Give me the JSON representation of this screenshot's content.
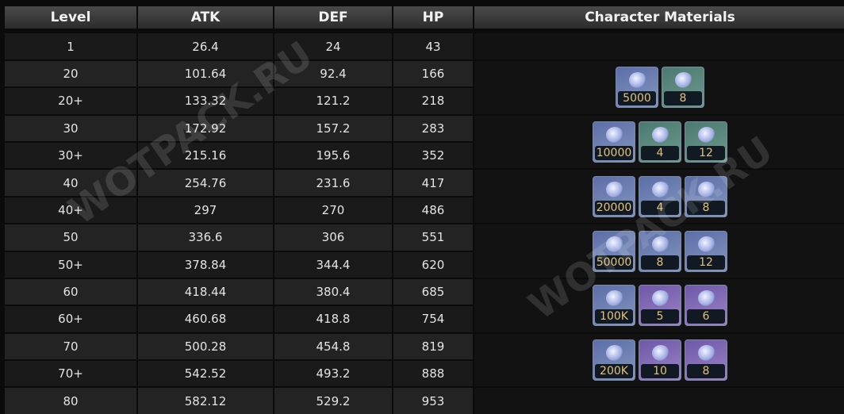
{
  "headers": [
    "Level",
    "ATK",
    "DEF",
    "HP",
    "Character Materials"
  ],
  "rows": [
    [
      "1",
      "26.4",
      "24",
      "43"
    ],
    [
      "20",
      "101.64",
      "92.4",
      "166"
    ],
    [
      "20+",
      "133.32",
      "121.2",
      "218"
    ],
    [
      "30",
      "172.92",
      "157.2",
      "283"
    ],
    [
      "30+",
      "215.16",
      "195.6",
      "352"
    ],
    [
      "40",
      "254.76",
      "231.6",
      "417"
    ],
    [
      "40+",
      "297",
      "270",
      "486"
    ],
    [
      "50",
      "336.6",
      "306",
      "551"
    ],
    [
      "50+",
      "378.84",
      "344.4",
      "620"
    ],
    [
      "60",
      "418.44",
      "380.4",
      "685"
    ],
    [
      "60+",
      "460.68",
      "418.8",
      "754"
    ],
    [
      "70",
      "500.28",
      "454.8",
      "819"
    ],
    [
      "70+",
      "542.52",
      "493.2",
      "888"
    ],
    [
      "80",
      "582.12",
      "529.2",
      "953"
    ]
  ],
  "materials": [
    [
      {
        "qty": "5000",
        "rarity": "blue"
      },
      {
        "qty": "8",
        "rarity": "green"
      }
    ],
    [
      {
        "qty": "10000",
        "rarity": "blue"
      },
      {
        "qty": "4",
        "rarity": "green"
      },
      {
        "qty": "12",
        "rarity": "green"
      }
    ],
    [
      {
        "qty": "20000",
        "rarity": "blue"
      },
      {
        "qty": "4",
        "rarity": "blue"
      },
      {
        "qty": "8",
        "rarity": "blue"
      }
    ],
    [
      {
        "qty": "50000",
        "rarity": "blue"
      },
      {
        "qty": "8",
        "rarity": "blue"
      },
      {
        "qty": "12",
        "rarity": "blue"
      }
    ],
    [
      {
        "qty": "100K",
        "rarity": "blue"
      },
      {
        "qty": "5",
        "rarity": "purple"
      },
      {
        "qty": "6",
        "rarity": "purple"
      }
    ],
    [
      {
        "qty": "200K",
        "rarity": "blue"
      },
      {
        "qty": "10",
        "rarity": "purple"
      },
      {
        "qty": "8",
        "rarity": "purple"
      }
    ]
  ],
  "watermark": "WOTPACK.RU"
}
